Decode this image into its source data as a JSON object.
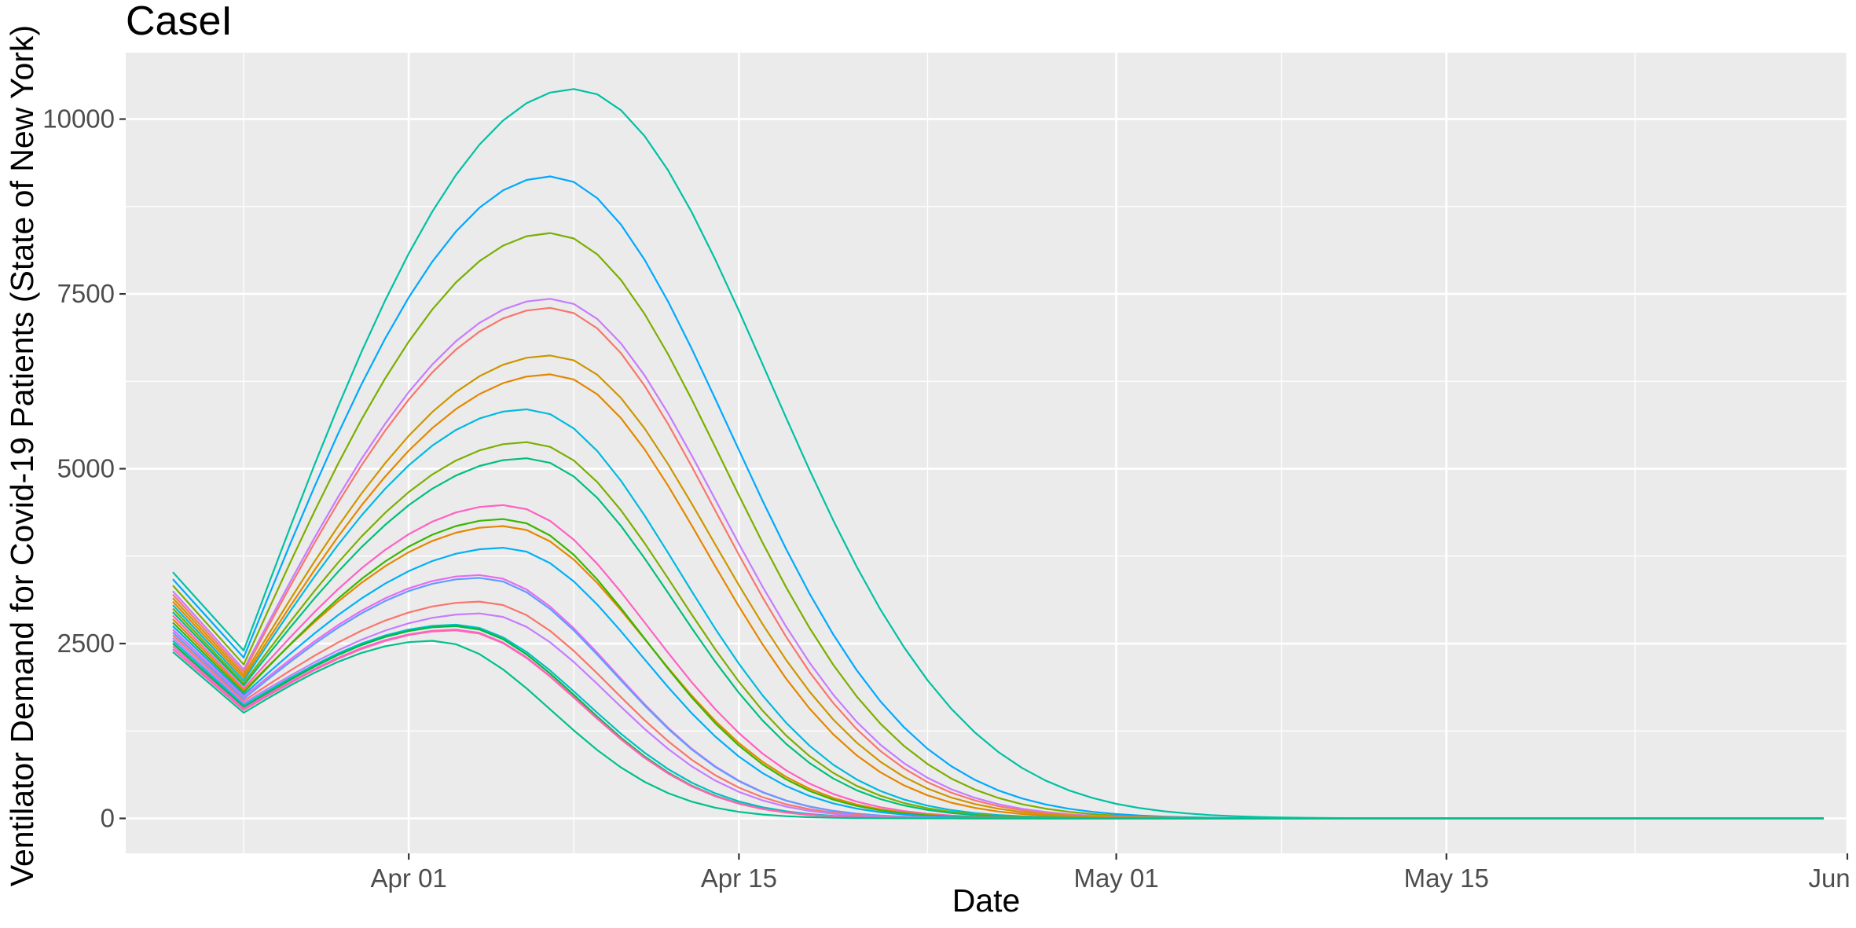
{
  "chart_data": {
    "type": "line",
    "title": "CaseI",
    "xlabel": "Date",
    "ylabel": "Ventilator Demand for Covid-19 Patients (State of New York)",
    "x_start": "2020-03-22",
    "x_step_days": 1,
    "xlim": [
      "2020-03-20",
      "2020-06-01"
    ],
    "ylim": [
      -500,
      10950
    ],
    "x_ticks": [
      {
        "date": "2020-04-01",
        "label": "Apr 01"
      },
      {
        "date": "2020-04-15",
        "label": "Apr 15"
      },
      {
        "date": "2020-05-01",
        "label": "May 01"
      },
      {
        "date": "2020-05-15",
        "label": "May 15"
      },
      {
        "date": "2020-06-01",
        "label": "Jun 01"
      }
    ],
    "x_minor_ticks": [
      "2020-03-25",
      "2020-04-08",
      "2020-04-23",
      "2020-05-08",
      "2020-05-23"
    ],
    "y_ticks": [
      {
        "value": 0,
        "label": "0"
      },
      {
        "value": 2500,
        "label": "2500"
      },
      {
        "value": 5000,
        "label": "5000"
      },
      {
        "value": 7500,
        "label": "7500"
      },
      {
        "value": 10000,
        "label": "10000"
      }
    ],
    "y_minor_ticks": [
      1250,
      3750,
      6250,
      8750
    ],
    "grid": true,
    "legend": "none",
    "background": "#EBEBEB",
    "series": [
      {
        "color": "#00C1A3",
        "start": 3520,
        "trough": 2400,
        "peak": 10430,
        "peak_day": 17,
        "rise": 5.5,
        "fall": 6.5
      },
      {
        "color": "#00A9FF",
        "start": 3420,
        "trough": 2300,
        "peak": 9180,
        "peak_day": 16,
        "rise": 5.3,
        "fall": 6.0
      },
      {
        "color": "#7CAE00",
        "start": 3330,
        "trough": 2200,
        "peak": 8370,
        "peak_day": 16,
        "rise": 5.3,
        "fall": 5.8
      },
      {
        "color": "#C77CFF",
        "start": 3250,
        "trough": 2130,
        "peak": 7430,
        "peak_day": 16,
        "rise": 5.4,
        "fall": 5.6
      },
      {
        "color": "#F8766D",
        "start": 3200,
        "trough": 2090,
        "peak": 7300,
        "peak_day": 16,
        "rise": 5.4,
        "fall": 5.5
      },
      {
        "color": "#CD9600",
        "start": 3150,
        "trough": 2050,
        "peak": 6620,
        "peak_day": 16,
        "rise": 5.3,
        "fall": 5.4
      },
      {
        "color": "#E58700",
        "start": 3100,
        "trough": 2010,
        "peak": 6350,
        "peak_day": 16,
        "rise": 5.3,
        "fall": 5.2
      },
      {
        "color": "#00BAE0",
        "start": 3050,
        "trough": 1970,
        "peak": 5850,
        "peak_day": 15,
        "rise": 5.2,
        "fall": 5.1
      },
      {
        "color": "#7CAE00",
        "start": 3000,
        "trough": 1930,
        "peak": 5380,
        "peak_day": 15,
        "rise": 5.2,
        "fall": 5.0
      },
      {
        "color": "#00BF7D",
        "start": 2950,
        "trough": 1900,
        "peak": 5150,
        "peak_day": 15,
        "rise": 5.2,
        "fall": 4.9
      },
      {
        "color": "#FF61C3",
        "start": 2900,
        "trough": 1860,
        "peak": 4480,
        "peak_day": 14,
        "rise": 5.2,
        "fall": 4.9
      },
      {
        "color": "#E58700",
        "start": 2850,
        "trough": 1830,
        "peak": 4180,
        "peak_day": 14,
        "rise": 5.2,
        "fall": 4.8
      },
      {
        "color": "#39B600",
        "start": 2800,
        "trough": 1800,
        "peak": 4280,
        "peak_day": 14,
        "rise": 5.2,
        "fall": 4.7
      },
      {
        "color": "#00B0F6",
        "start": 2750,
        "trough": 1770,
        "peak": 3870,
        "peak_day": 14,
        "rise": 5.1,
        "fall": 4.6
      },
      {
        "color": "#E76BF3",
        "start": 2700,
        "trough": 1740,
        "peak": 3480,
        "peak_day": 13,
        "rise": 5.0,
        "fall": 4.5
      },
      {
        "color": "#619CFF",
        "start": 2660,
        "trough": 1710,
        "peak": 3440,
        "peak_day": 13,
        "rise": 5.0,
        "fall": 4.5
      },
      {
        "color": "#F8766D",
        "start": 2620,
        "trough": 1680,
        "peak": 3100,
        "peak_day": 13,
        "rise": 5.0,
        "fall": 4.4
      },
      {
        "color": "#C77CFF",
        "start": 2580,
        "trough": 1650,
        "peak": 2930,
        "peak_day": 13,
        "rise": 5.0,
        "fall": 4.3
      },
      {
        "color": "#00BFC4",
        "start": 2540,
        "trough": 1620,
        "peak": 2770,
        "peak_day": 12,
        "rise": 5.0,
        "fall": 4.3
      },
      {
        "color": "#00BA38",
        "start": 2500,
        "trough": 1590,
        "peak": 2750,
        "peak_day": 12,
        "rise": 5.0,
        "fall": 4.2
      },
      {
        "color": "#F564E3",
        "start": 2460,
        "trough": 1570,
        "peak": 2700,
        "peak_day": 12,
        "rise": 5.0,
        "fall": 4.2
      },
      {
        "color": "#FF64B0",
        "start": 2420,
        "trough": 1550,
        "peak": 2690,
        "peak_day": 12,
        "rise": 5.0,
        "fall": 4.2
      },
      {
        "color": "#00C08B",
        "start": 2380,
        "trough": 1510,
        "peak": 2540,
        "peak_day": 11,
        "rise": 5.0,
        "fall": 4.0
      }
    ],
    "end_day": 70
  }
}
